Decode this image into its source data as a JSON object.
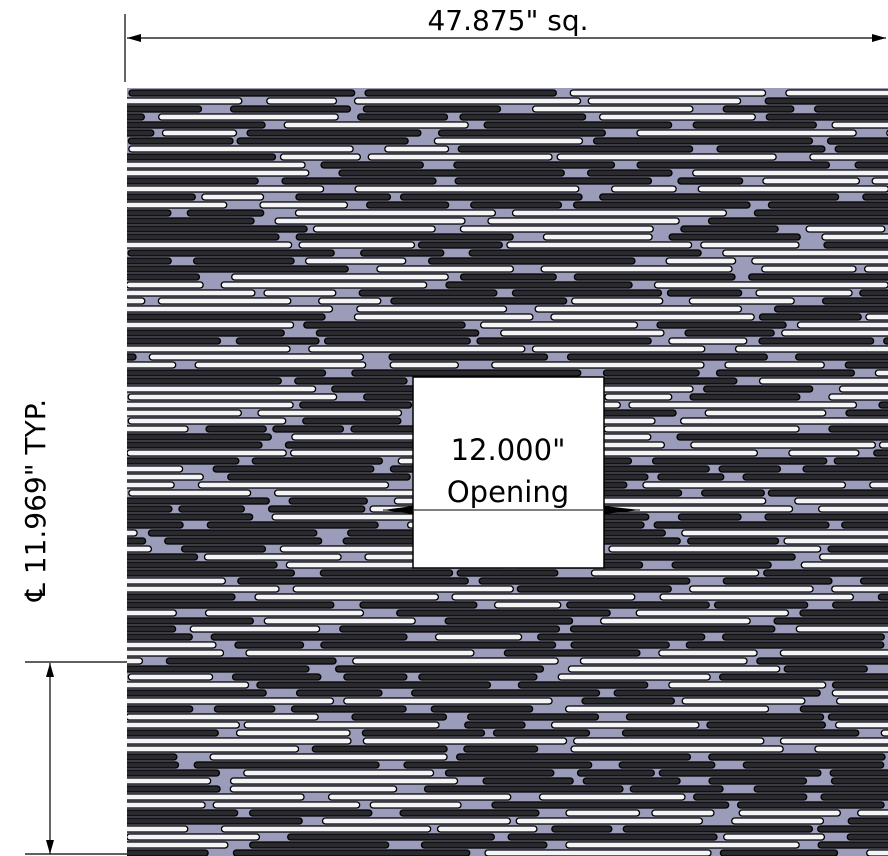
{
  "dimensions": {
    "overall": "47.875\" sq.",
    "spacing": "℄ 11.969\" TYP."
  },
  "opening": {
    "size": "12.000\"",
    "label": "Opening"
  }
}
